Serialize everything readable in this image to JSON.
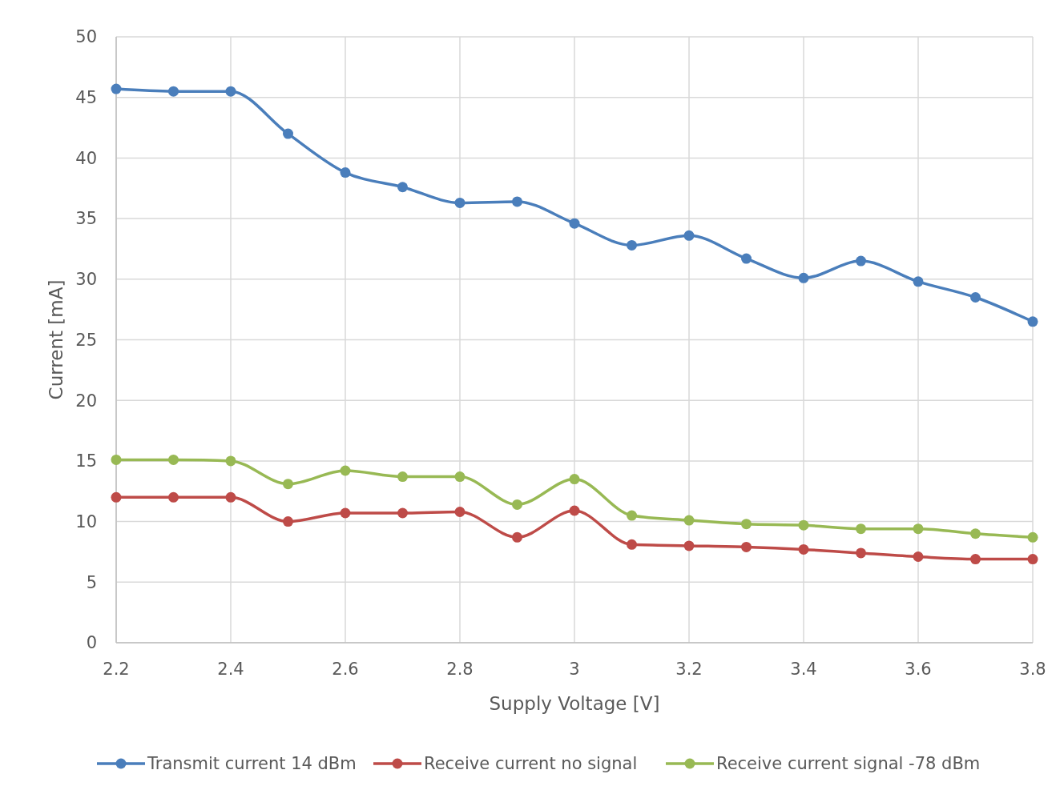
{
  "chart_data": {
    "type": "line",
    "xlabel": "Supply Voltage [V]",
    "ylabel": "Current [mA]",
    "x": [
      2.2,
      2.3,
      2.4,
      2.5,
      2.6,
      2.7,
      2.8,
      2.9,
      3.0,
      3.1,
      3.2,
      3.3,
      3.4,
      3.5,
      3.6,
      3.7,
      3.8
    ],
    "series": [
      {
        "name": "Transmit current 14 dBm",
        "color": "#4a7ebb",
        "values": [
          45.7,
          45.5,
          45.5,
          42.0,
          38.8,
          37.6,
          36.3,
          36.4,
          34.6,
          32.8,
          33.6,
          31.7,
          30.1,
          31.5,
          29.8,
          28.5,
          26.5
        ]
      },
      {
        "name": "Receive current no signal",
        "color": "#be4b48",
        "values": [
          12.0,
          12.0,
          12.0,
          10.0,
          10.7,
          10.7,
          10.8,
          8.7,
          10.9,
          8.1,
          8.0,
          7.9,
          7.7,
          7.4,
          7.1,
          6.9,
          6.9
        ]
      },
      {
        "name": "Receive current signal -78 dBm",
        "color": "#98b954",
        "values": [
          15.1,
          15.1,
          15.0,
          13.1,
          14.2,
          13.7,
          13.7,
          11.4,
          13.5,
          10.5,
          10.1,
          9.8,
          9.7,
          9.4,
          9.4,
          9.0,
          8.7
        ]
      }
    ],
    "xlim": [
      2.2,
      3.8
    ],
    "xticks": [
      2.2,
      2.4,
      2.6,
      2.8,
      3,
      3.2,
      3.4,
      3.6,
      3.8
    ],
    "ylim": [
      0,
      50
    ],
    "yticks": [
      0,
      5,
      10,
      15,
      20,
      25,
      30,
      35,
      40,
      45,
      50
    ],
    "grid": true,
    "legend": "bottom",
    "marker": "circle",
    "line_style": "solid"
  }
}
